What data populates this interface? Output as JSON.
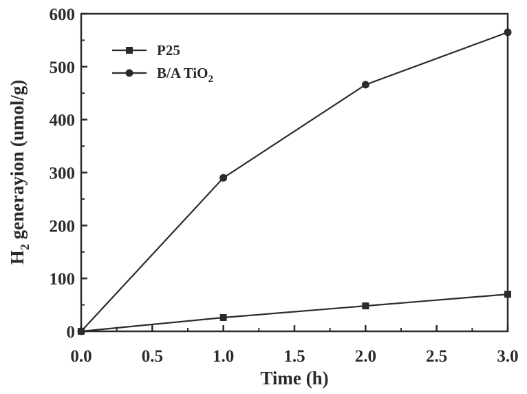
{
  "chart_data": {
    "type": "line",
    "title": "",
    "xlabel": "Time (h)",
    "ylabel_main": "H",
    "ylabel_sub": "2",
    "ylabel_rest": " generayion (umol/g)",
    "xlim": [
      0,
      3.0
    ],
    "ylim": [
      0,
      600
    ],
    "xticks": [
      "0.0",
      "0.5",
      "1.0",
      "1.5",
      "2.0",
      "2.5",
      "3.0"
    ],
    "yticks": [
      "0",
      "100",
      "200",
      "300",
      "400",
      "500",
      "600"
    ],
    "x": [
      0,
      1.0,
      2.0,
      3.0
    ],
    "grid": false,
    "legend_position": "top-left",
    "series": [
      {
        "name": "P25",
        "name_main": "P25",
        "name_sub": "",
        "marker": "square",
        "values": [
          0,
          26,
          48,
          70
        ]
      },
      {
        "name": "B/A TiO2",
        "name_main": "B/A TiO",
        "name_sub": "2",
        "marker": "circle",
        "values": [
          0,
          290,
          466,
          565
        ]
      }
    ],
    "line_color": "#2b2b2b"
  }
}
